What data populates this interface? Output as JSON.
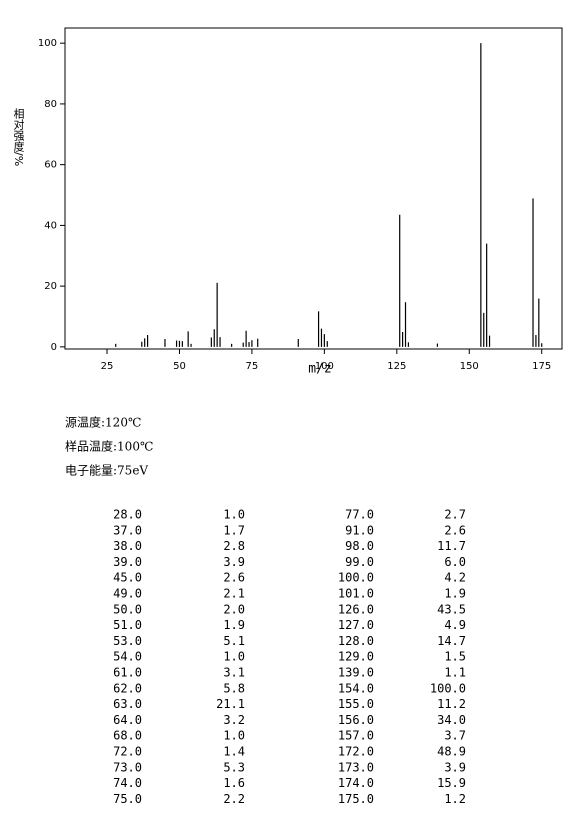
{
  "chart_data": {
    "type": "bar",
    "ylabel": "相对强度/%",
    "xlabel": "m/z",
    "x": [
      28,
      37,
      38,
      39,
      45,
      49,
      50,
      51,
      53,
      54,
      61,
      62,
      63,
      64,
      68,
      72,
      73,
      74,
      75,
      77,
      91,
      98,
      99,
      100,
      101,
      126,
      127,
      128,
      129,
      139,
      154,
      155,
      156,
      157,
      172,
      173,
      174,
      175
    ],
    "x_labels": [
      "28.0",
      "37.0",
      "38.0",
      "39.0",
      "45.0",
      "49.0",
      "50.0",
      "51.0",
      "53.0",
      "54.0",
      "61.0",
      "62.0",
      "63.0",
      "64.0",
      "68.0",
      "72.0",
      "73.0",
      "74.0",
      "75.0",
      "77.0",
      "91.0",
      "98.0",
      "99.0",
      "100.0",
      "101.0",
      "126.0",
      "127.0",
      "128.0",
      "129.0",
      "139.0",
      "154.0",
      "155.0",
      "156.0",
      "157.0",
      "172.0",
      "173.0",
      "174.0",
      "175.0"
    ],
    "values": [
      1.0,
      1.7,
      2.8,
      3.9,
      2.6,
      2.1,
      2.0,
      1.9,
      5.1,
      1.0,
      3.1,
      5.8,
      21.1,
      3.2,
      1.0,
      1.4,
      5.3,
      1.6,
      2.2,
      2.7,
      2.6,
      11.7,
      6.0,
      4.2,
      1.9,
      43.5,
      4.9,
      14.7,
      1.5,
      1.1,
      100.0,
      11.2,
      34.0,
      3.7,
      48.9,
      3.9,
      15.9,
      1.2
    ],
    "value_labels": [
      "1.0",
      "1.7",
      "2.8",
      "3.9",
      "2.6",
      "2.1",
      "2.0",
      "1.9",
      "5.1",
      "1.0",
      "3.1",
      "5.8",
      "21.1",
      "3.2",
      "1.0",
      "1.4",
      "5.3",
      "1.6",
      "2.2",
      "2.7",
      "2.6",
      "11.7",
      "6.0",
      "4.2",
      "1.9",
      "43.5",
      "4.9",
      "14.7",
      "1.5",
      "1.1",
      "100.0",
      "11.2",
      "34.0",
      "3.7",
      "48.9",
      "3.9",
      "15.9",
      "1.2"
    ],
    "color": "#000000",
    "xlim": [
      10.5,
      182
    ],
    "xticks": [
      25,
      50,
      75,
      100,
      125,
      150,
      175
    ],
    "ylim": [
      -0.7,
      105
    ],
    "yticks": [
      0,
      20,
      40,
      60,
      80,
      100
    ]
  },
  "info": [
    "源温度:120℃",
    "样品温度:100℃",
    "电子能量:75eV"
  ]
}
